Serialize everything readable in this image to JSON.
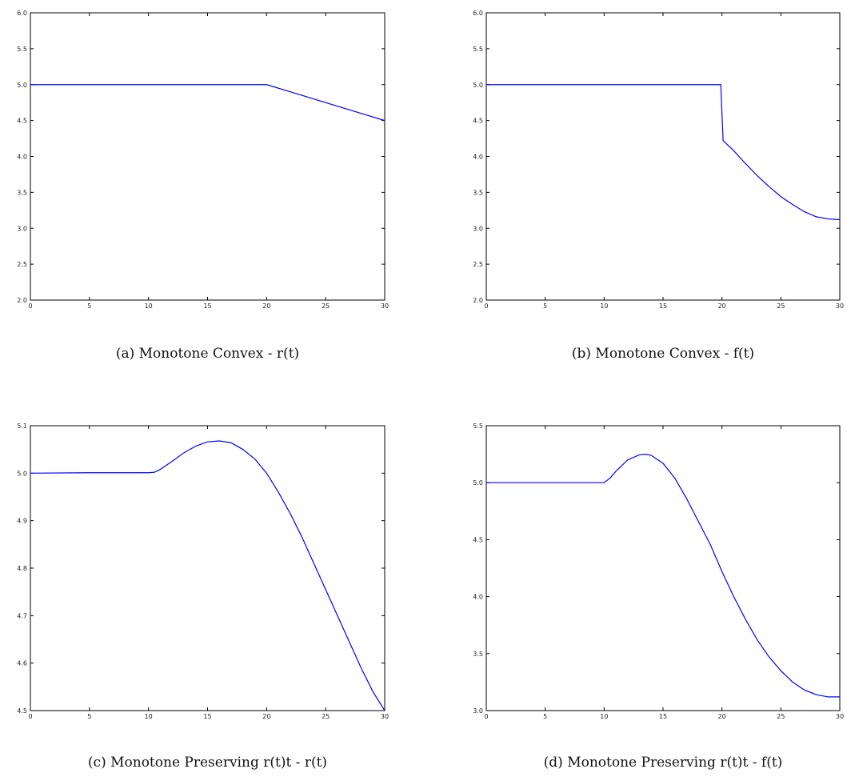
{
  "chart_data": [
    {
      "type": "line",
      "caption": "(a) Monotone Convex - r(t)",
      "xlim": [
        0,
        30
      ],
      "ylim": [
        2.0,
        6.0
      ],
      "x_ticks": [
        "0",
        "5",
        "10",
        "15",
        "20",
        "25",
        "30"
      ],
      "y_ticks": [
        "2.0",
        "2.5",
        "3.0",
        "3.5",
        "4.0",
        "4.5",
        "5.0",
        "5.5",
        "6.0"
      ],
      "series": [
        {
          "x": [
            0,
            20,
            22,
            24,
            26,
            28,
            30
          ],
          "y": [
            5.0,
            5.0,
            4.9,
            4.8,
            4.7,
            4.6,
            4.5
          ]
        }
      ]
    },
    {
      "type": "line",
      "caption": "(b) Monotone Convex - f(t)",
      "xlim": [
        0,
        30
      ],
      "ylim": [
        2.0,
        6.0
      ],
      "x_ticks": [
        "0",
        "5",
        "10",
        "15",
        "20",
        "25",
        "30"
      ],
      "y_ticks": [
        "2.0",
        "2.5",
        "3.0",
        "3.5",
        "4.0",
        "4.5",
        "5.0",
        "5.5",
        "6.0"
      ],
      "series": [
        {
          "x": [
            0,
            19.9,
            20.0,
            20.1,
            21,
            22,
            23,
            24,
            25,
            26,
            27,
            28,
            29,
            30
          ],
          "y": [
            5.0,
            5.0,
            4.6,
            4.22,
            4.08,
            3.9,
            3.73,
            3.58,
            3.44,
            3.33,
            3.23,
            3.16,
            3.13,
            3.12
          ]
        }
      ]
    },
    {
      "type": "line",
      "caption": "(c) Monotone Preserving r(t)t - r(t)",
      "xlim": [
        0,
        30
      ],
      "ylim": [
        4.5,
        5.1
      ],
      "x_ticks": [
        "0",
        "5",
        "10",
        "15",
        "20",
        "25",
        "30"
      ],
      "y_ticks": [
        "4.5",
        "4.6",
        "4.7",
        "4.8",
        "4.9",
        "5.0",
        "5.1"
      ],
      "series": [
        {
          "x": [
            0,
            5,
            10,
            10.5,
            11,
            12,
            13,
            14,
            15,
            16,
            17,
            18,
            19,
            20,
            21,
            22,
            23,
            24,
            25,
            26,
            27,
            28,
            29,
            30
          ],
          "y": [
            5.0,
            5.001,
            5.001,
            5.002,
            5.008,
            5.025,
            5.043,
            5.057,
            5.066,
            5.068,
            5.064,
            5.05,
            5.03,
            5.0,
            4.96,
            4.915,
            4.865,
            4.81,
            4.755,
            4.7,
            4.645,
            4.59,
            4.54,
            4.5
          ]
        }
      ]
    },
    {
      "type": "line",
      "caption": "(d) Monotone Preserving r(t)t - f(t)",
      "xlim": [
        0,
        30
      ],
      "ylim": [
        3.0,
        5.5
      ],
      "x_ticks": [
        "0",
        "5",
        "10",
        "15",
        "20",
        "25",
        "30"
      ],
      "y_ticks": [
        "3.0",
        "3.5",
        "4.0",
        "4.5",
        "5.0",
        "5.5"
      ],
      "series": [
        {
          "x": [
            0,
            10,
            10.5,
            11,
            12,
            13,
            13.5,
            14,
            15,
            16,
            17,
            18,
            19,
            20,
            21,
            22,
            23,
            24,
            25,
            26,
            27,
            28,
            29,
            30
          ],
          "y": [
            5.0,
            5.0,
            5.04,
            5.1,
            5.2,
            5.245,
            5.25,
            5.24,
            5.17,
            5.04,
            4.86,
            4.66,
            4.46,
            4.22,
            4.0,
            3.8,
            3.62,
            3.47,
            3.35,
            3.25,
            3.18,
            3.14,
            3.12,
            3.12
          ]
        }
      ]
    }
  ]
}
